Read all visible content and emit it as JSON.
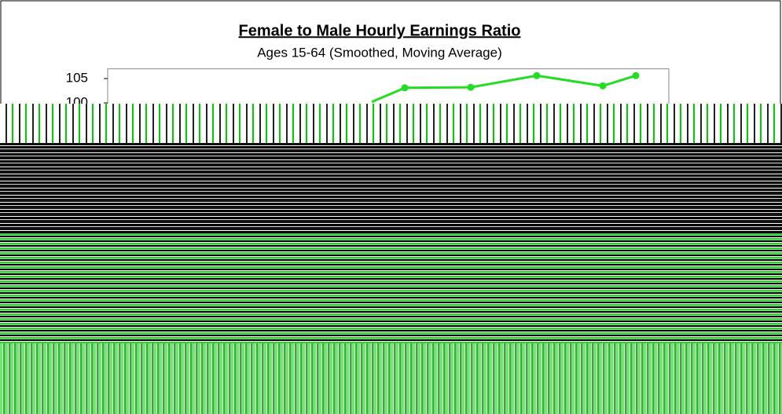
{
  "chart_data": {
    "type": "line",
    "title": "Female to Male Hourly Earnings Ratio",
    "subtitle": "Ages 15-64 (Smoothed, Moving Average)",
    "x": [
      8,
      9,
      11,
      13,
      15,
      16
    ],
    "series": [
      {
        "color": "#22dd22",
        "values": [
          100.2,
          103.1,
          103.2,
          105.6,
          103.5,
          105.6
        ]
      }
    ],
    "xlim": [
      0,
      17
    ],
    "ylim": [
      100,
      107
    ],
    "yticks": [
      100,
      105
    ]
  }
}
